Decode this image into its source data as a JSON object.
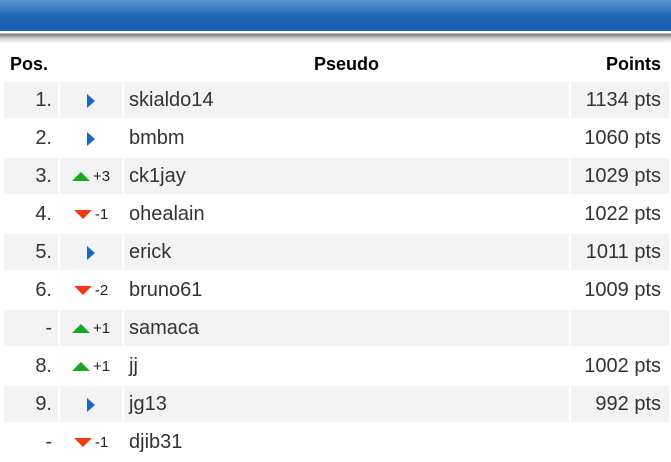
{
  "headers": {
    "pos": "Pos.",
    "pseudo": "Pseudo",
    "points": "Points"
  },
  "colors": {
    "header_bar": "#1d64b4",
    "up": "#17a81f",
    "down": "#f03a13",
    "same": "#1a68c2"
  },
  "rows": [
    {
      "pos": "1.",
      "trend": "same",
      "change": "",
      "pseudo": "skialdo14",
      "points": "1134 pts"
    },
    {
      "pos": "2.",
      "trend": "same",
      "change": "",
      "pseudo": "bmbm",
      "points": "1060 pts"
    },
    {
      "pos": "3.",
      "trend": "up",
      "change": "+3",
      "pseudo": "ck1jay",
      "points": "1029 pts"
    },
    {
      "pos": "4.",
      "trend": "down",
      "change": "-1",
      "pseudo": "ohealain",
      "points": "1022 pts"
    },
    {
      "pos": "5.",
      "trend": "same",
      "change": "",
      "pseudo": "erick",
      "points": "1011 pts"
    },
    {
      "pos": "6.",
      "trend": "down",
      "change": "-2",
      "pseudo": "bruno61",
      "points": "1009 pts"
    },
    {
      "pos": "-",
      "trend": "up",
      "change": "+1",
      "pseudo": "samaca",
      "points": ""
    },
    {
      "pos": "8.",
      "trend": "up",
      "change": "+1",
      "pseudo": "jj",
      "points": "1002 pts"
    },
    {
      "pos": "9.",
      "trend": "same",
      "change": "",
      "pseudo": "jg13",
      "points": "992 pts"
    },
    {
      "pos": "-",
      "trend": "down",
      "change": "-1",
      "pseudo": "djib31",
      "points": ""
    }
  ]
}
